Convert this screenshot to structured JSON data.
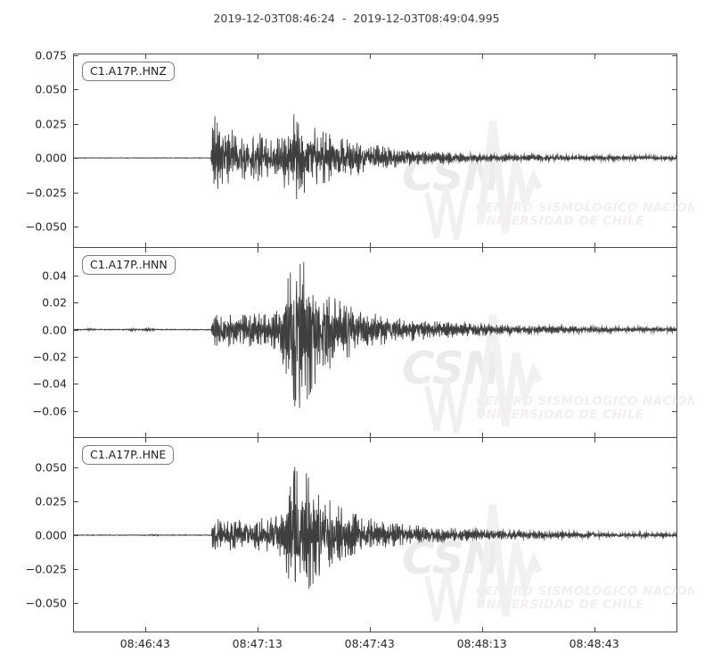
{
  "title": "2019-12-03T08:46:24  -  2019-12-03T08:49:04.995",
  "watermark": {
    "acronym": "CSN",
    "line1": "CENTRO SISMOLÓGICO NACIONAL",
    "line2": "UNIVERSIDAD DE CHILE"
  },
  "colors": {
    "trace": "#3f3f3f",
    "frame": "#4a4a4a",
    "tick_label": "#262626",
    "watermark_big": "#ebebeb",
    "watermark_zigzag": "#f1f1f1",
    "watermark_text": "#f2efee",
    "background": "#ffffff"
  },
  "x_axis": {
    "start_label": "2019-12-03T08:46:24",
    "end_label": "2019-12-03T08:49:04.995",
    "duration_s": 160.995,
    "ticks": [
      {
        "label": "08:46:43",
        "t": 19
      },
      {
        "label": "08:47:13",
        "t": 49
      },
      {
        "label": "08:47:43",
        "t": 79
      },
      {
        "label": "08:48:13",
        "t": 109
      },
      {
        "label": "08:48:43",
        "t": 139
      }
    ]
  },
  "chart_data": [
    {
      "type": "line",
      "kind": "seismogram-trace",
      "label": "C1.A17P..HNZ",
      "station": "C1.A17P",
      "channel": "HNZ",
      "ylim": [
        -0.065,
        0.0755
      ],
      "yticks": [
        0.075,
        0.05,
        0.025,
        0.0,
        -0.025,
        -0.05
      ],
      "ytick_labels": [
        "0.075",
        "0.050",
        "0.025",
        "0.000",
        "−0.025",
        "−0.050"
      ],
      "peak_amplitude": {
        "max": 0.033,
        "min": -0.03
      },
      "p_onset_s": 37.0,
      "s_onset_s": 56.5,
      "neg_bias": 0.97,
      "envelope": {
        "t": [
          0,
          36.6,
          37.0,
          37.6,
          38.5,
          40,
          43,
          46,
          49,
          52,
          55,
          56.5,
          58,
          59.5,
          61,
          63,
          65,
          68,
          72,
          77,
          83,
          90,
          100,
          112,
          126,
          142,
          161
        ],
        "a": [
          0.0002,
          0.0002,
          0.02,
          0.028,
          0.022,
          0.017,
          0.019,
          0.015,
          0.017,
          0.014,
          0.013,
          0.022,
          0.027,
          0.031,
          0.027,
          0.022,
          0.019,
          0.016,
          0.013,
          0.01,
          0.0075,
          0.005,
          0.0035,
          0.0025,
          0.002,
          0.0017,
          0.0015
        ]
      }
    },
    {
      "type": "line",
      "kind": "seismogram-trace",
      "label": "C1.A17P..HNN",
      "station": "C1.A17P",
      "channel": "HNN",
      "ylim": [
        -0.0794,
        0.0603
      ],
      "yticks": [
        0.04,
        0.02,
        0.0,
        -0.02,
        -0.04,
        -0.06
      ],
      "ytick_labels": [
        "0.04",
        "0.02",
        "0.00",
        "−0.02",
        "−0.04",
        "−0.06"
      ],
      "peak_amplitude": {
        "max": 0.055,
        "min": -0.062
      },
      "p_onset_s": 37.0,
      "s_onset_s": 56.0,
      "neg_bias": 1.13,
      "envelope": {
        "t": [
          0,
          3,
          4.5,
          6,
          14,
          15.5,
          17,
          20,
          22,
          36.6,
          37.0,
          38,
          40,
          43,
          46,
          49,
          52,
          54.5,
          56,
          57.5,
          59,
          60.5,
          62,
          63.5,
          65,
          67,
          69,
          72,
          76,
          80,
          85,
          91,
          100,
          110,
          122,
          136,
          150,
          161
        ],
        "a": [
          0.0003,
          0.0003,
          0.0011,
          0.0003,
          0.0003,
          0.001,
          0.0003,
          0.0011,
          0.0003,
          0.0003,
          0.008,
          0.01,
          0.0095,
          0.011,
          0.0095,
          0.011,
          0.01,
          0.013,
          0.024,
          0.042,
          0.052,
          0.049,
          0.043,
          0.036,
          0.03,
          0.026,
          0.022,
          0.018,
          0.014,
          0.011,
          0.0085,
          0.0065,
          0.0048,
          0.0036,
          0.0027,
          0.002,
          0.0016,
          0.0014
        ]
      }
    },
    {
      "type": "line",
      "kind": "seismogram-trace",
      "label": "C1.A17P..HNE",
      "station": "C1.A17P",
      "channel": "HNE",
      "ylim": [
        -0.0712,
        0.0718
      ],
      "yticks": [
        0.05,
        0.025,
        0.0,
        -0.025,
        -0.05
      ],
      "ytick_labels": [
        "0.050",
        "0.025",
        "0.000",
        "−0.025",
        "−0.050"
      ],
      "peak_amplitude": {
        "max": 0.052,
        "min": -0.047
      },
      "p_onset_s": 37.0,
      "s_onset_s": 56.0,
      "neg_bias": 0.92,
      "envelope": {
        "t": [
          0,
          20,
          21.5,
          23,
          36.6,
          37.0,
          38,
          40,
          43,
          46,
          49,
          52,
          54.5,
          56,
          57.5,
          59,
          60.5,
          62,
          64,
          66,
          68,
          71,
          74,
          78,
          83,
          89,
          96,
          105,
          116,
          130,
          145,
          161
        ],
        "a": [
          0.0003,
          0.0003,
          0.001,
          0.0003,
          0.0003,
          0.009,
          0.011,
          0.01,
          0.012,
          0.01,
          0.011,
          0.012,
          0.014,
          0.02,
          0.034,
          0.046,
          0.048,
          0.042,
          0.035,
          0.029,
          0.024,
          0.019,
          0.0155,
          0.012,
          0.009,
          0.007,
          0.0055,
          0.0042,
          0.0032,
          0.0024,
          0.0018,
          0.0015
        ]
      }
    }
  ]
}
